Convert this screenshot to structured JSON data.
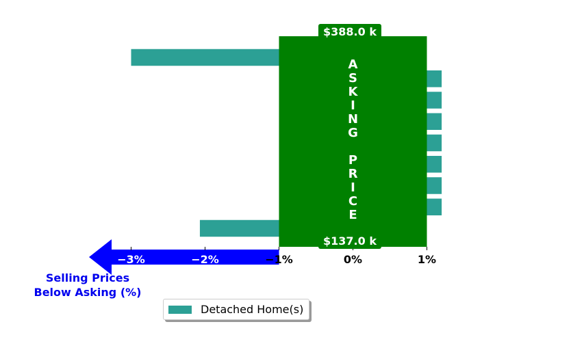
{
  "chart_data": {
    "type": "bar",
    "orientation": "horizontal",
    "series": [
      {
        "name": "Detached Home(s)",
        "values": [
          -3.0,
          1.2,
          1.2,
          1.2,
          1.2,
          1.2,
          1.2,
          1.2,
          -2.07
        ]
      }
    ],
    "xlim": [
      -3.6,
      1.05
    ],
    "xticks": [
      -3,
      -2,
      -1,
      0,
      1
    ],
    "xtick_labels": [
      "−3%",
      "−2%",
      "−1%",
      "0%",
      "1%"
    ],
    "asking_price_band": [
      -1,
      1
    ],
    "asking_price_text": "ASKING PRICE",
    "top_price": "$388.0 k",
    "bottom_price": "$137.0 k",
    "below_asking_label": [
      "Selling Prices",
      "Below Asking (%)"
    ],
    "legend": {
      "placement": "bottom-center",
      "label": "Detached Home(s)"
    },
    "grid": false
  },
  "colors": {
    "bar": "#2ca095",
    "asking_band": "#008000",
    "arrow": "#0000ff",
    "below_text": "#0000ee",
    "tick_positive": "#000000",
    "tick_negative": "#ffffff"
  }
}
